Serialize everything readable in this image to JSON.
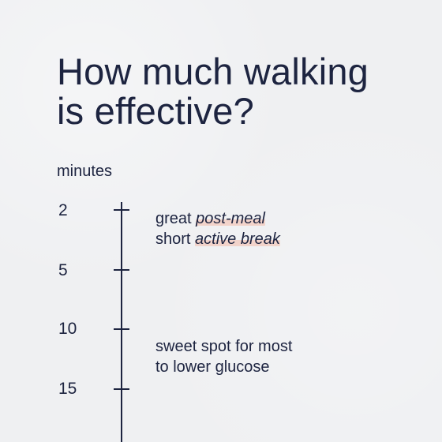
{
  "title": {
    "line1": "How much walking",
    "line2": "is effective?"
  },
  "scale": {
    "unit_label": "minutes",
    "ticks": [
      {
        "label": "2"
      },
      {
        "label": "5"
      },
      {
        "label": "10"
      },
      {
        "label": "15"
      }
    ]
  },
  "notes": [
    {
      "line1_prefix": "great ",
      "line1_highlight": "post-meal",
      "line2_prefix": "short ",
      "line2_highlight": "active break"
    },
    {
      "line1": "sweet spot for most",
      "line2": "to lower glucose"
    }
  ],
  "colors": {
    "background": "#eff0f2",
    "text": "#1d2440",
    "highlight": "#f5b09a"
  }
}
